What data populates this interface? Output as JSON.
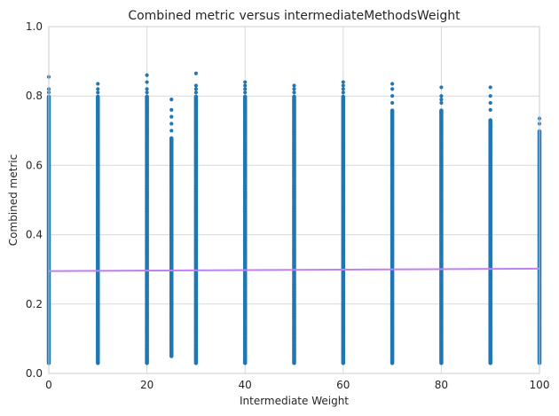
{
  "chart_data": {
    "type": "scatter",
    "title": "Combined metric versus intermediateMethodsWeight",
    "xlabel": "Intermediate Weight",
    "ylabel": "Combined metric",
    "xlim": [
      0,
      100
    ],
    "ylim": [
      0,
      1.0
    ],
    "xticks": [
      0,
      20,
      40,
      60,
      80,
      100
    ],
    "xtick_labels": [
      "0",
      "20",
      "40",
      "60",
      "80",
      "100"
    ],
    "yticks": [
      0.0,
      0.2,
      0.4,
      0.6,
      0.8,
      1.0
    ],
    "ytick_labels": [
      "0.0",
      "0.2",
      "0.4",
      "0.6",
      "0.8",
      "1.0"
    ],
    "grid": true,
    "legend": "none",
    "scatter_color": "#1f77b4",
    "trend_color": "#bf80f2",
    "columns": [
      {
        "x": 0,
        "y_min": 0.03,
        "y_dense_max": 0.8,
        "outliers": [
          0.81,
          0.82,
          0.855
        ]
      },
      {
        "x": 10,
        "y_min": 0.03,
        "y_dense_max": 0.8,
        "outliers": [
          0.81,
          0.82,
          0.835
        ]
      },
      {
        "x": 20,
        "y_min": 0.03,
        "y_dense_max": 0.8,
        "outliers": [
          0.81,
          0.82,
          0.84,
          0.86
        ]
      },
      {
        "x": 25,
        "y_min": 0.05,
        "y_dense_max": 0.68,
        "outliers": [
          0.7,
          0.72,
          0.74,
          0.76,
          0.79
        ]
      },
      {
        "x": 30,
        "y_min": 0.03,
        "y_dense_max": 0.8,
        "outliers": [
          0.81,
          0.82,
          0.83,
          0.865
        ]
      },
      {
        "x": 40,
        "y_min": 0.03,
        "y_dense_max": 0.8,
        "outliers": [
          0.81,
          0.82,
          0.83,
          0.84
        ]
      },
      {
        "x": 50,
        "y_min": 0.03,
        "y_dense_max": 0.8,
        "outliers": [
          0.81,
          0.82,
          0.83
        ]
      },
      {
        "x": 60,
        "y_min": 0.03,
        "y_dense_max": 0.8,
        "outliers": [
          0.81,
          0.82,
          0.83,
          0.84
        ]
      },
      {
        "x": 70,
        "y_min": 0.03,
        "y_dense_max": 0.76,
        "outliers": [
          0.78,
          0.8,
          0.82,
          0.835
        ]
      },
      {
        "x": 80,
        "y_min": 0.03,
        "y_dense_max": 0.76,
        "outliers": [
          0.78,
          0.79,
          0.8,
          0.825
        ]
      },
      {
        "x": 90,
        "y_min": 0.03,
        "y_dense_max": 0.73,
        "outliers": [
          0.76,
          0.78,
          0.8,
          0.825
        ]
      },
      {
        "x": 100,
        "y_min": 0.03,
        "y_dense_max": 0.7,
        "outliers": [
          0.72,
          0.735
        ]
      }
    ],
    "trend_line": {
      "x": [
        0,
        100
      ],
      "y": [
        0.295,
        0.302
      ]
    }
  }
}
